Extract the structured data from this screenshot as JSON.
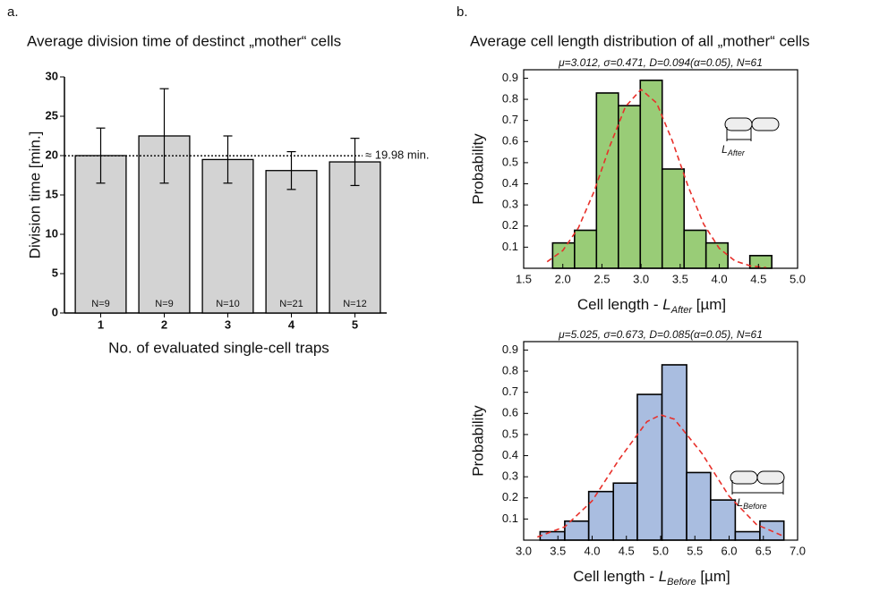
{
  "chart_data": [
    {
      "type": "bar",
      "panel_label": "a.",
      "title": "Average division time of destinct „mother“ cells",
      "categories": [
        "1",
        "2",
        "3",
        "4",
        "5"
      ],
      "values": [
        20.0,
        22.5,
        19.5,
        18.1,
        19.2
      ],
      "errors": [
        3.5,
        6.0,
        3.0,
        2.4,
        3.0
      ],
      "bar_annotations": [
        "N=9",
        "N=9",
        "N=10",
        "N=21",
        "N=12"
      ],
      "color": "#d3d3d3",
      "ylim": [
        0,
        30
      ],
      "yticks": [
        0,
        5,
        10,
        15,
        20,
        25,
        30
      ],
      "xlabel": "No. of evaluated single-cell traps",
      "ylabel": "Division time [min.]",
      "reference_line": {
        "value": 19.98,
        "label": "≈ 19.98 min."
      }
    },
    {
      "type": "histogram",
      "panel_label": "b.",
      "title": "Average cell length distribution of all „mother“ cells",
      "annotation": "μ=3.012, σ=0.471, D=0.094(α=0.05), N=61",
      "bins": [
        1.87,
        2.15,
        2.43,
        2.71,
        2.99,
        3.27,
        3.55,
        3.83,
        4.11,
        4.39,
        4.67
      ],
      "values": [
        0.12,
        0.18,
        0.83,
        0.77,
        0.89,
        0.47,
        0.18,
        0.12,
        0,
        0.06
      ],
      "color": "#99cc77",
      "fit": {
        "color": "#e8302a",
        "x": [
          1.8,
          2.0,
          2.2,
          2.4,
          2.6,
          2.8,
          3.0,
          3.2,
          3.4,
          3.6,
          3.8,
          4.0,
          4.2,
          4.4,
          4.6
        ],
        "values": [
          0.031,
          0.084,
          0.192,
          0.364,
          0.578,
          0.765,
          0.847,
          0.782,
          0.603,
          0.389,
          0.209,
          0.094,
          0.035,
          0.011,
          0.003
        ]
      },
      "xlim": [
        1.5,
        5.0
      ],
      "xticks": [
        1.5,
        {
          "value": 2,
          "label": "2.0"
        },
        2.5,
        {
          "value": 3,
          "label": "3.0"
        },
        3.5,
        {
          "value": 4,
          "label": "4.0"
        },
        4.5,
        {
          "value": 5,
          "label": "5.0"
        }
      ],
      "ylim": [
        0,
        0.94
      ],
      "yticks": [
        0.1,
        0.2,
        0.3,
        0.4,
        0.5,
        0.6,
        0.7,
        0.8,
        0.9
      ],
      "xlabel": {
        "text": "Cell length - ",
        "symbol": "L",
        "subscript": "After",
        "unit": " [µm]"
      },
      "ylabel": "Probability"
    },
    {
      "type": "histogram",
      "annotation": "μ=5.025, σ=0.673, D=0.085(α=0.05), N=61",
      "bins": [
        3.24,
        3.6,
        3.95,
        4.31,
        4.66,
        5.02,
        5.38,
        5.73,
        6.09,
        6.45,
        6.8
      ],
      "values": [
        0.04,
        0.09,
        0.23,
        0.27,
        0.69,
        0.83,
        0.32,
        0.19,
        0.04,
        0.09
      ],
      "color": "#a9bde0",
      "fit": {
        "color": "#e8302a",
        "x": [
          3.2,
          3.6,
          4.0,
          4.4,
          4.8,
          5.0,
          5.2,
          5.6,
          6.0,
          6.4,
          6.8
        ],
        "values": [
          0.015,
          0.063,
          0.186,
          0.385,
          0.561,
          0.593,
          0.573,
          0.412,
          0.208,
          0.074,
          0.018
        ]
      },
      "xlim": [
        3.0,
        7.0
      ],
      "xticks": [
        {
          "value": 3,
          "label": "3.0"
        },
        3.5,
        {
          "value": 4,
          "label": "4.0"
        },
        4.5,
        {
          "value": 5,
          "label": "5.0"
        },
        5.5,
        {
          "value": 6,
          "label": "6.0"
        },
        6.5,
        {
          "value": 7,
          "label": "7.0"
        }
      ],
      "ylim": [
        0,
        0.94
      ],
      "yticks": [
        0.1,
        0.2,
        0.3,
        0.4,
        0.5,
        0.6,
        0.7,
        0.8,
        0.9
      ],
      "xlabel": {
        "text": "Cell length - ",
        "symbol": "L",
        "subscript": "Before",
        "unit": " [µm]"
      },
      "ylabel": "Probability"
    }
  ]
}
